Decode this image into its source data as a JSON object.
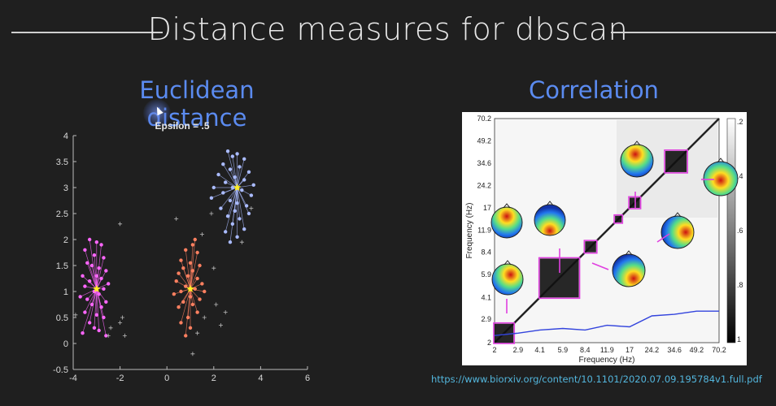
{
  "slide": {
    "title": "Distance measures for dbscan",
    "left_heading": "Euclidean distance",
    "right_heading": "Correlation",
    "source_url": "https://www.biorxiv.org/content/10.1101/2020.07.09.195784v1.full.pdf"
  },
  "colors": {
    "background": "#1f1f1f",
    "heading": "#5b8bf0",
    "url": "#53b6dd",
    "magenta": "#e040e0"
  },
  "chart_data": [
    {
      "type": "scatter",
      "title": "Epsilon = .5",
      "xlabel": "",
      "ylabel": "",
      "xlim": [
        -4,
        6
      ],
      "ylim": [
        -0.5,
        4
      ],
      "x_ticks": [
        "-4",
        "-2",
        "0",
        "2",
        "4",
        "6"
      ],
      "y_ticks": [
        "-0.5",
        "0",
        "0.5",
        "1",
        "1.5",
        "2",
        "2.5",
        "3",
        "3.5",
        "4"
      ],
      "grid": false,
      "clusters": [
        {
          "color": "#ff66ff",
          "center": [
            -3.0,
            1.05
          ],
          "points": [
            [
              -3.3,
              2.0
            ],
            [
              -3.0,
              1.95
            ],
            [
              -2.8,
              1.9
            ],
            [
              -3.5,
              1.8
            ],
            [
              -3.1,
              1.7
            ],
            [
              -2.7,
              1.65
            ],
            [
              -3.4,
              1.55
            ],
            [
              -3.2,
              1.5
            ],
            [
              -2.9,
              1.45
            ],
            [
              -2.6,
              1.4
            ],
            [
              -3.6,
              1.3
            ],
            [
              -3.0,
              1.3
            ],
            [
              -2.8,
              1.25
            ],
            [
              -3.3,
              1.2
            ],
            [
              -2.5,
              1.15
            ],
            [
              -3.5,
              1.1
            ],
            [
              -2.7,
              1.05
            ],
            [
              -3.1,
              1.0
            ],
            [
              -2.9,
              0.95
            ],
            [
              -3.7,
              0.9
            ],
            [
              -3.4,
              0.85
            ],
            [
              -2.6,
              0.8
            ],
            [
              -3.2,
              0.75
            ],
            [
              -2.8,
              0.7
            ],
            [
              -3.5,
              0.6
            ],
            [
              -3.0,
              0.55
            ],
            [
              -2.7,
              0.5
            ],
            [
              -3.3,
              0.4
            ],
            [
              -3.1,
              0.3
            ],
            [
              -2.9,
              0.25
            ],
            [
              -3.6,
              0.2
            ],
            [
              -2.6,
              0.15
            ]
          ]
        },
        {
          "color": "#ff8060",
          "center": [
            1.0,
            1.05
          ],
          "points": [
            [
              1.2,
              2.0
            ],
            [
              1.1,
              1.9
            ],
            [
              0.8,
              1.8
            ],
            [
              1.3,
              1.75
            ],
            [
              0.6,
              1.6
            ],
            [
              1.0,
              1.55
            ],
            [
              1.4,
              1.5
            ],
            [
              0.7,
              1.45
            ],
            [
              1.1,
              1.4
            ],
            [
              0.5,
              1.35
            ],
            [
              0.9,
              1.3
            ],
            [
              1.3,
              1.25
            ],
            [
              0.4,
              1.2
            ],
            [
              1.5,
              1.15
            ],
            [
              0.8,
              1.1
            ],
            [
              1.2,
              1.05
            ],
            [
              0.6,
              1.0
            ],
            [
              1.6,
              1.0
            ],
            [
              0.3,
              0.95
            ],
            [
              1.0,
              0.9
            ],
            [
              1.4,
              0.85
            ],
            [
              0.7,
              0.8
            ],
            [
              1.1,
              0.75
            ],
            [
              0.5,
              0.7
            ],
            [
              1.3,
              0.6
            ],
            [
              0.9,
              0.5
            ],
            [
              0.6,
              0.4
            ],
            [
              1.0,
              0.3
            ],
            [
              0.8,
              0.15
            ]
          ]
        },
        {
          "color": "#aabbff",
          "center": [
            3.0,
            3.0
          ],
          "points": [
            [
              2.6,
              3.7
            ],
            [
              3.0,
              3.65
            ],
            [
              2.8,
              3.6
            ],
            [
              3.3,
              3.55
            ],
            [
              2.4,
              3.45
            ],
            [
              3.1,
              3.4
            ],
            [
              2.7,
              3.35
            ],
            [
              3.5,
              3.3
            ],
            [
              2.2,
              3.25
            ],
            [
              2.9,
              3.2
            ],
            [
              3.3,
              3.15
            ],
            [
              2.5,
              3.1
            ],
            [
              3.7,
              3.05
            ],
            [
              2.0,
              3.0
            ],
            [
              2.8,
              3.0
            ],
            [
              3.2,
              2.95
            ],
            [
              2.4,
              2.9
            ],
            [
              3.6,
              2.85
            ],
            [
              1.9,
              2.8
            ],
            [
              2.7,
              2.75
            ],
            [
              3.0,
              2.7
            ],
            [
              3.4,
              2.65
            ],
            [
              2.3,
              2.6
            ],
            [
              2.9,
              2.55
            ],
            [
              3.5,
              2.5
            ],
            [
              2.6,
              2.45
            ],
            [
              3.1,
              2.4
            ],
            [
              2.8,
              2.3
            ],
            [
              3.3,
              2.2
            ],
            [
              2.5,
              2.15
            ],
            [
              3.0,
              2.05
            ],
            [
              2.7,
              1.95
            ]
          ]
        }
      ],
      "noise": [
        [
          -2.0,
          2.3
        ],
        [
          -1.9,
          0.5
        ],
        [
          -2.0,
          0.4
        ],
        [
          -2.4,
          0.3
        ],
        [
          -2.5,
          0.15
        ],
        [
          -1.8,
          0.15
        ],
        [
          -3.9,
          0.55
        ],
        [
          1.5,
          2.1
        ],
        [
          1.9,
          2.5
        ],
        [
          2.0,
          1.45
        ],
        [
          2.1,
          0.75
        ],
        [
          1.6,
          0.5
        ],
        [
          2.3,
          0.35
        ],
        [
          2.5,
          0.6
        ],
        [
          1.3,
          0.2
        ],
        [
          1.1,
          -0.2
        ],
        [
          3.2,
          1.95
        ],
        [
          0.4,
          2.4
        ],
        [
          3.6,
          2.6
        ]
      ]
    },
    {
      "type": "heatmap",
      "xlabel": "Frequency (Hz)",
      "ylabel": "Frequency (Hz)",
      "x_ticks": [
        "2",
        "2.9",
        "4.1",
        "5.9",
        "8.4",
        "11.9",
        "17",
        "24.2",
        "34.6",
        "49.2",
        "70.2"
      ],
      "y_ticks": [
        "2",
        "2.9",
        "4.1",
        "5.9",
        "8.4",
        "11.9",
        "17",
        "24.2",
        "34.6",
        "49.2",
        "70.2"
      ],
      "colorbar_ticks": [
        ".2",
        ".4",
        ".6",
        ".8",
        "1"
      ],
      "blocks": [
        {
          "from": 2.0,
          "to": 2.7,
          "label": "2-2.7 Hz"
        },
        {
          "from": 4.1,
          "to": 7.6,
          "label": "4.1-7.6 Hz"
        },
        {
          "from": 8.4,
          "to": 10.0,
          "label": "8.4-10 Hz"
        },
        {
          "from": 13.5,
          "to": 15.0,
          "label": "13.5-15 Hz"
        },
        {
          "from": 17.0,
          "to": 20.0,
          "label": "17-20 Hz"
        },
        {
          "from": 30.0,
          "to": 42.0,
          "label": "30-42 Hz"
        }
      ],
      "spectrum_line": {
        "color": "#3344dd",
        "x": [
          "2",
          "2.9",
          "4.1",
          "5.9",
          "8.4",
          "11.9",
          "17",
          "24.2",
          "34.6",
          "49.2",
          "70.2"
        ],
        "y_relative": [
          0.05,
          0.08,
          0.12,
          0.14,
          0.12,
          0.18,
          0.16,
          0.3,
          0.32,
          0.36,
          0.36
        ]
      }
    }
  ]
}
